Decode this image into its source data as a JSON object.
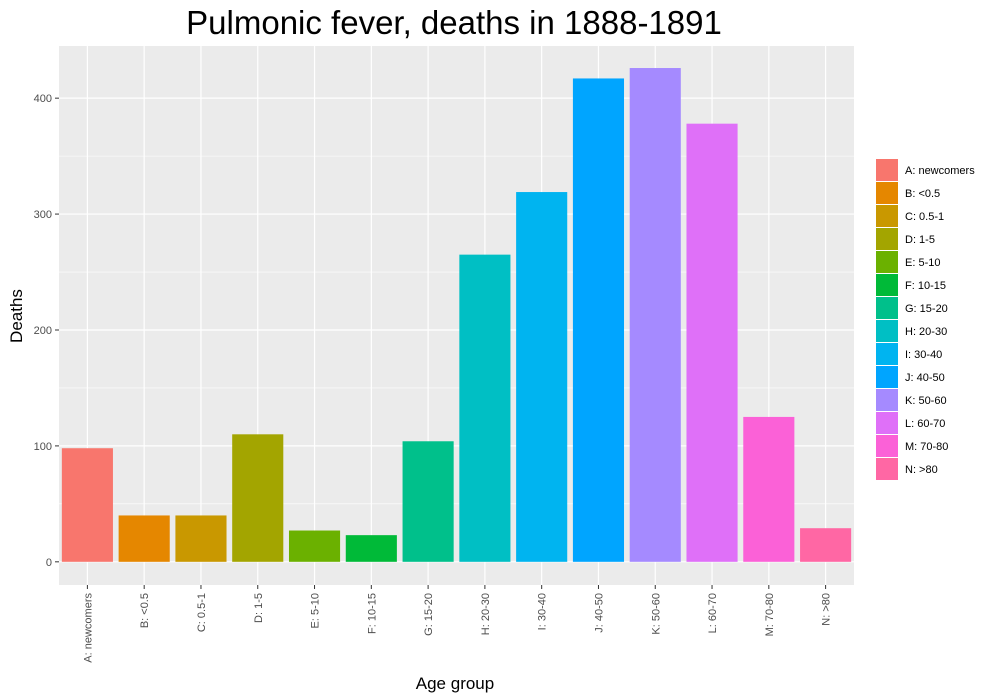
{
  "chart_data": {
    "type": "bar",
    "title": "Pulmonic fever, deaths in 1888-1891",
    "xlabel": "Age group",
    "ylabel": "Deaths",
    "categories": [
      "A: newcomers",
      "B: <0.5",
      "C: 0.5-1",
      "D: 1-5",
      "E: 5-10",
      "F: 10-15",
      "G: 15-20",
      "H: 20-30",
      "I: 30-40",
      "J: 40-50",
      "K: 50-60",
      "L: 60-70",
      "M: 70-80",
      "N: >80"
    ],
    "values": [
      98,
      40,
      40,
      110,
      27,
      23,
      104,
      265,
      319,
      417,
      426,
      378,
      125,
      29
    ],
    "colors": [
      "#F8766D",
      "#E58700",
      "#C99800",
      "#A3A500",
      "#6BB100",
      "#00BA38",
      "#00C08B",
      "#00BFC4",
      "#00B4F0",
      "#00A5FF",
      "#A58AFF",
      "#DF70F8",
      "#FB61D7",
      "#FF67A4"
    ],
    "ylim": [
      -20,
      445
    ],
    "yticks": [
      0,
      100,
      200,
      300,
      400
    ],
    "ytick_labels": [
      "0",
      "100",
      "200",
      "300",
      "400"
    ],
    "legend_position": "right",
    "grid": true,
    "panel_color": "#EBEBEB",
    "grid_color": "#FFFFFF"
  }
}
